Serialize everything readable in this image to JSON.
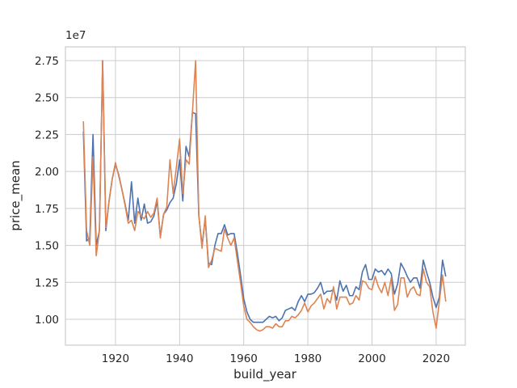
{
  "chart_data": {
    "type": "line",
    "x_label": "build_year",
    "y_label": "price_mean",
    "y_offset_label": "1e7",
    "grid": true,
    "xlim": [
      1904.4,
      2029.1
    ],
    "ylim": [
      0.825,
      2.843
    ],
    "xticks": [
      1920,
      1940,
      1960,
      1980,
      2000,
      2020
    ],
    "yticks": [
      {
        "value": 1.0,
        "label": "1.00"
      },
      {
        "value": 1.25,
        "label": "1.25"
      },
      {
        "value": 1.5,
        "label": "1.50"
      },
      {
        "value": 1.75,
        "label": "1.75"
      },
      {
        "value": 2.0,
        "label": "2.00"
      },
      {
        "value": 2.25,
        "label": "2.25"
      },
      {
        "value": 2.5,
        "label": "2.50"
      },
      {
        "value": 2.75,
        "label": "2.75"
      }
    ],
    "x": [
      1910,
      1911,
      1912,
      1913,
      1914,
      1915,
      1916,
      1917,
      1918,
      1919,
      1920,
      1921,
      1922,
      1923,
      1924,
      1925,
      1926,
      1927,
      1928,
      1929,
      1930,
      1931,
      1932,
      1933,
      1934,
      1935,
      1936,
      1937,
      1938,
      1939,
      1940,
      1941,
      1942,
      1943,
      1944,
      1945,
      1946,
      1947,
      1948,
      1949,
      1950,
      1951,
      1952,
      1953,
      1954,
      1955,
      1956,
      1957,
      1958,
      1959,
      1960,
      1961,
      1962,
      1963,
      1964,
      1965,
      1966,
      1967,
      1968,
      1969,
      1970,
      1971,
      1972,
      1973,
      1974,
      1975,
      1976,
      1977,
      1978,
      1979,
      1980,
      1981,
      1982,
      1983,
      1984,
      1985,
      1986,
      1987,
      1988,
      1989,
      1990,
      1991,
      1992,
      1993,
      1994,
      1995,
      1996,
      1997,
      1998,
      1999,
      2000,
      2001,
      2002,
      2003,
      2004,
      2005,
      2006,
      2007,
      2008,
      2009,
      2010,
      2011,
      2012,
      2013,
      2014,
      2015,
      2016,
      2017,
      2018,
      2019,
      2020,
      2021,
      2022,
      2023
    ],
    "series": [
      {
        "color": "#4c72b0",
        "values": [
          2.27,
          1.53,
          1.55,
          2.25,
          1.5,
          1.6,
          2.75,
          1.6,
          1.8,
          1.95,
          2.05,
          1.98,
          1.88,
          1.78,
          1.67,
          1.93,
          1.65,
          1.82,
          1.67,
          1.78,
          1.65,
          1.66,
          1.7,
          1.8,
          1.56,
          1.71,
          1.74,
          1.79,
          1.82,
          1.92,
          2.08,
          1.8,
          2.17,
          2.1,
          2.4,
          2.39,
          1.7,
          1.5,
          1.68,
          1.38,
          1.37,
          1.5,
          1.58,
          1.58,
          1.64,
          1.57,
          1.58,
          1.58,
          1.45,
          1.3,
          1.14,
          1.05,
          1.0,
          0.98,
          0.98,
          0.98,
          0.98,
          1.0,
          1.02,
          1.01,
          1.02,
          0.99,
          1.01,
          1.06,
          1.07,
          1.08,
          1.06,
          1.12,
          1.16,
          1.12,
          1.17,
          1.17,
          1.18,
          1.21,
          1.25,
          1.17,
          1.19,
          1.19,
          1.2,
          1.13,
          1.26,
          1.19,
          1.23,
          1.16,
          1.16,
          1.22,
          1.2,
          1.32,
          1.37,
          1.27,
          1.27,
          1.34,
          1.32,
          1.33,
          1.3,
          1.34,
          1.31,
          1.17,
          1.24,
          1.38,
          1.34,
          1.29,
          1.25,
          1.28,
          1.28,
          1.21,
          1.4,
          1.32,
          1.25,
          1.15,
          1.08,
          1.15,
          1.4,
          1.29
        ]
      },
      {
        "color": "#dd8452",
        "values": [
          2.34,
          1.6,
          1.5,
          2.1,
          1.43,
          1.6,
          2.75,
          1.62,
          1.8,
          1.95,
          2.06,
          1.97,
          1.88,
          1.77,
          1.65,
          1.67,
          1.6,
          1.73,
          1.7,
          1.68,
          1.73,
          1.69,
          1.72,
          1.82,
          1.55,
          1.71,
          1.76,
          2.08,
          1.85,
          2.03,
          2.22,
          1.85,
          2.08,
          2.05,
          2.4,
          2.75,
          1.7,
          1.48,
          1.7,
          1.35,
          1.4,
          1.48,
          1.47,
          1.46,
          1.61,
          1.55,
          1.5,
          1.55,
          1.4,
          1.25,
          1.09,
          1.0,
          0.98,
          0.95,
          0.93,
          0.92,
          0.93,
          0.95,
          0.95,
          0.94,
          0.97,
          0.95,
          0.95,
          0.99,
          0.99,
          1.02,
          1.01,
          1.03,
          1.06,
          1.11,
          1.05,
          1.09,
          1.11,
          1.14,
          1.17,
          1.07,
          1.14,
          1.11,
          1.22,
          1.07,
          1.15,
          1.15,
          1.15,
          1.1,
          1.11,
          1.16,
          1.13,
          1.26,
          1.25,
          1.21,
          1.2,
          1.29,
          1.22,
          1.18,
          1.25,
          1.16,
          1.28,
          1.06,
          1.1,
          1.28,
          1.28,
          1.15,
          1.2,
          1.22,
          1.17,
          1.16,
          1.34,
          1.25,
          1.22,
          1.05,
          0.94,
          1.12,
          1.3,
          1.12
        ]
      }
    ]
  }
}
